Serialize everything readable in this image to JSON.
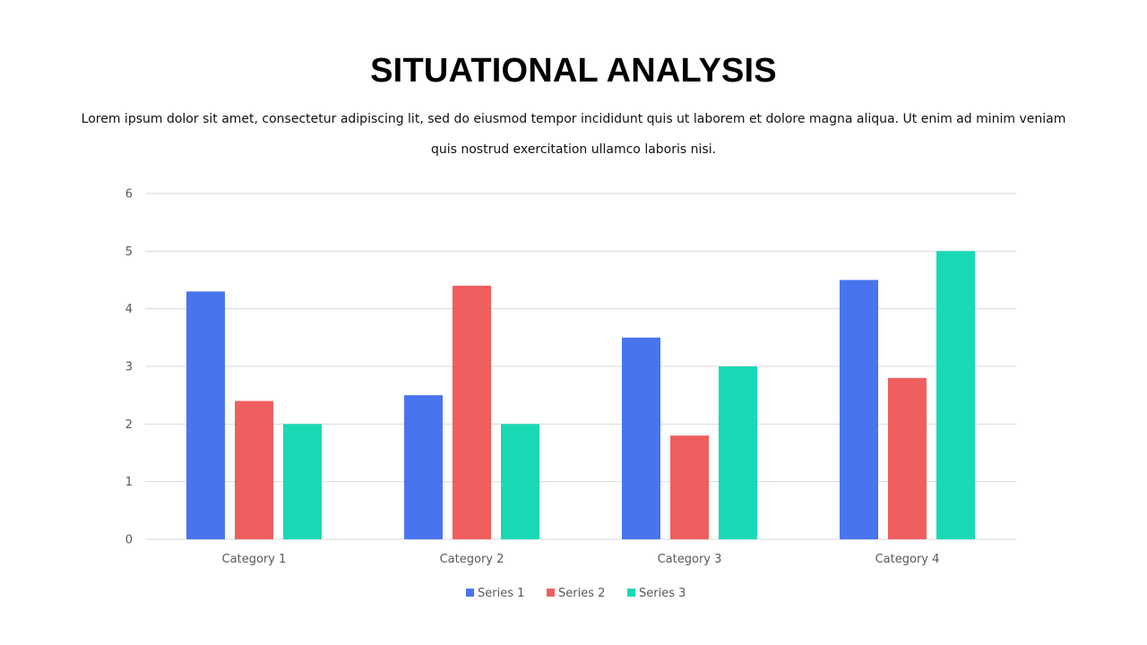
{
  "slide": {
    "title": "SITUATIONAL ANALYSIS",
    "subtitle": "Lorem ipsum dolor sit amet, consectetur adipiscing lit, sed do eiusmod tempor incididunt quis ut laborem et dolore  magna aliqua. Ut enim ad minim veniam quis nostrud exercitation ullamco laboris nisi."
  },
  "chart_data": {
    "type": "bar",
    "categories": [
      "Category 1",
      "Category 2",
      "Category 3",
      "Category 4"
    ],
    "series": [
      {
        "name": "Series 1",
        "color": "#4874EE",
        "values": [
          4.3,
          2.5,
          3.5,
          4.5
        ]
      },
      {
        "name": "Series 2",
        "color": "#F05F5F",
        "values": [
          2.4,
          4.4,
          1.8,
          2.8
        ]
      },
      {
        "name": "Series 3",
        "color": "#19D9B4",
        "values": [
          2,
          2,
          3,
          5
        ]
      }
    ],
    "ylim": [
      0,
      6
    ],
    "yticks": [
      0,
      1,
      2,
      3,
      4,
      5,
      6
    ],
    "grid": true,
    "legend": "bottom-center",
    "xlabel": "",
    "ylabel": ""
  }
}
